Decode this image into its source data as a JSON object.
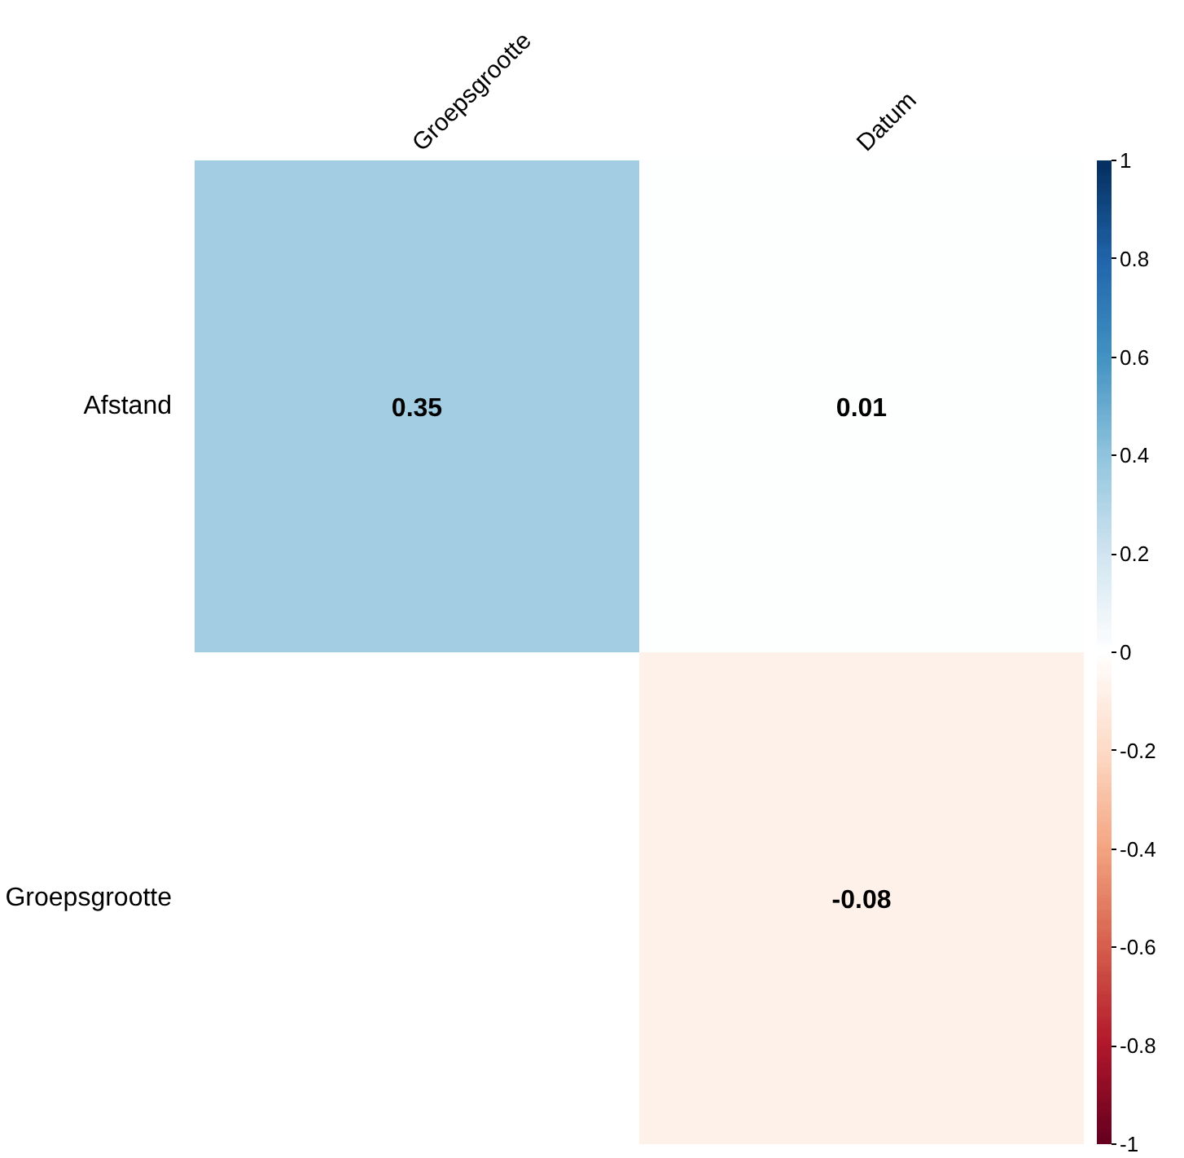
{
  "chart_data": {
    "type": "heatmap",
    "categories": [
      "Groepsgrootte",
      "Datum"
    ],
    "y_categories": [
      "Afstand",
      "Groepsgrootte"
    ],
    "cells": [
      [
        0.35,
        0.01
      ],
      [
        null,
        -0.08
      ]
    ],
    "clim": [
      -1,
      1
    ],
    "cticks": [
      -1,
      -0.8,
      -0.6,
      -0.4,
      -0.2,
      0,
      0.2,
      0.4,
      0.6,
      0.8,
      1
    ],
    "data_labels": true
  }
}
